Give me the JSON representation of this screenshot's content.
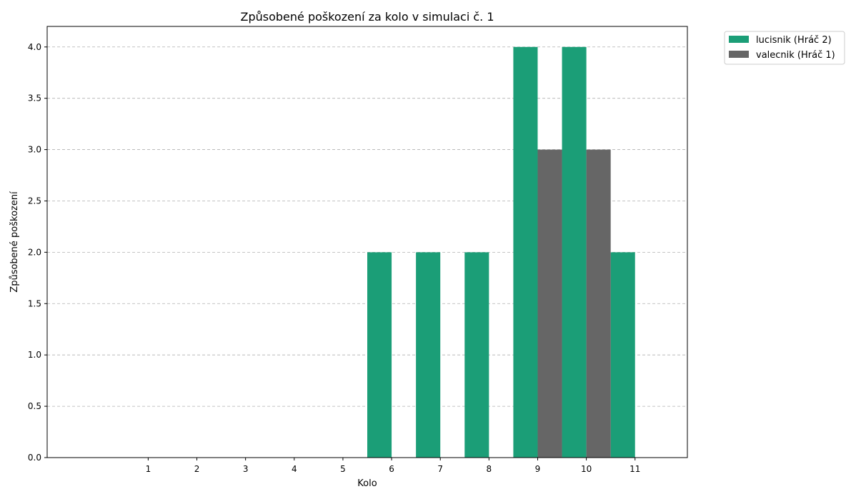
{
  "chart_data": {
    "type": "bar",
    "title": "Způsobené poškození za kolo v simulaci č. 1",
    "xlabel": "Kolo",
    "ylabel": "Způsobené poškození",
    "categories": [
      "1",
      "2",
      "3",
      "4",
      "5",
      "6",
      "7",
      "8",
      "9",
      "10",
      "11"
    ],
    "series": [
      {
        "name": "lucisnik (Hráč 2)",
        "color": "#1b9e77",
        "values": [
          0,
          0,
          0,
          0,
          0,
          2,
          2,
          2,
          4,
          4,
          2
        ]
      },
      {
        "name": "valecnik (Hráč 1)",
        "color": "#666666",
        "values": [
          0,
          0,
          0,
          0,
          0,
          0,
          0,
          0,
          3,
          3,
          0
        ]
      }
    ],
    "ylim": [
      0,
      4.2
    ],
    "yticks": [
      "0.0",
      "0.5",
      "1.0",
      "1.5",
      "2.0",
      "2.5",
      "3.0",
      "3.5",
      "4.0"
    ],
    "grid": "y-dashed",
    "legend": "outside-top-right"
  }
}
